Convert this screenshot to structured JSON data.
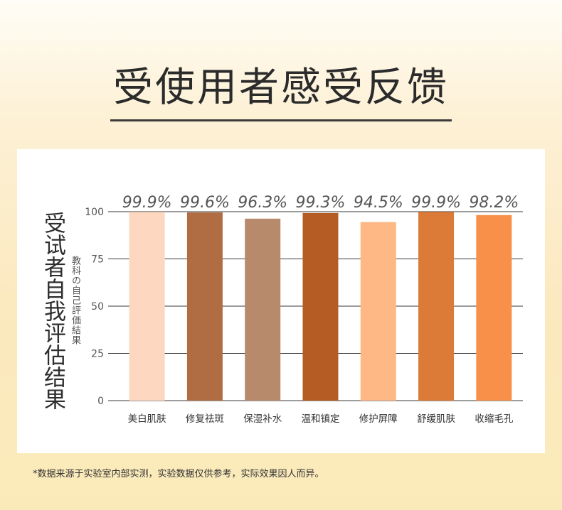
{
  "title": "受使用者感受反馈",
  "ylabel_main": "受试者自我评估结果",
  "ylabel_sub": "教科の自己評価結果",
  "footnote": "*数据来源于实验室内部实测，实验数据仅供参考，实际效果因人而异。",
  "chart_data": {
    "type": "bar",
    "categories": [
      "美白肌肤",
      "修复祛斑",
      "保湿补水",
      "温和镇定",
      "修护屏障",
      "舒缓肌肤",
      "收缩毛孔"
    ],
    "values": [
      99.9,
      99.6,
      96.3,
      99.3,
      94.5,
      99.9,
      98.2
    ],
    "data_labels": [
      "99.9%",
      "99.6%",
      "96.3%",
      "99.3%",
      "94.5%",
      "99.9%",
      "98.2%"
    ],
    "colors": [
      "#fdd7bf",
      "#b06d44",
      "#b88a6c",
      "#b55c25",
      "#fdb886",
      "#dc7b38",
      "#f8904a"
    ],
    "ylim": [
      0,
      100
    ],
    "yticks": [
      0,
      25,
      50,
      75,
      100
    ],
    "ytick_labels": [
      "0",
      "25",
      "50",
      "75",
      "100"
    ],
    "grid": true
  }
}
